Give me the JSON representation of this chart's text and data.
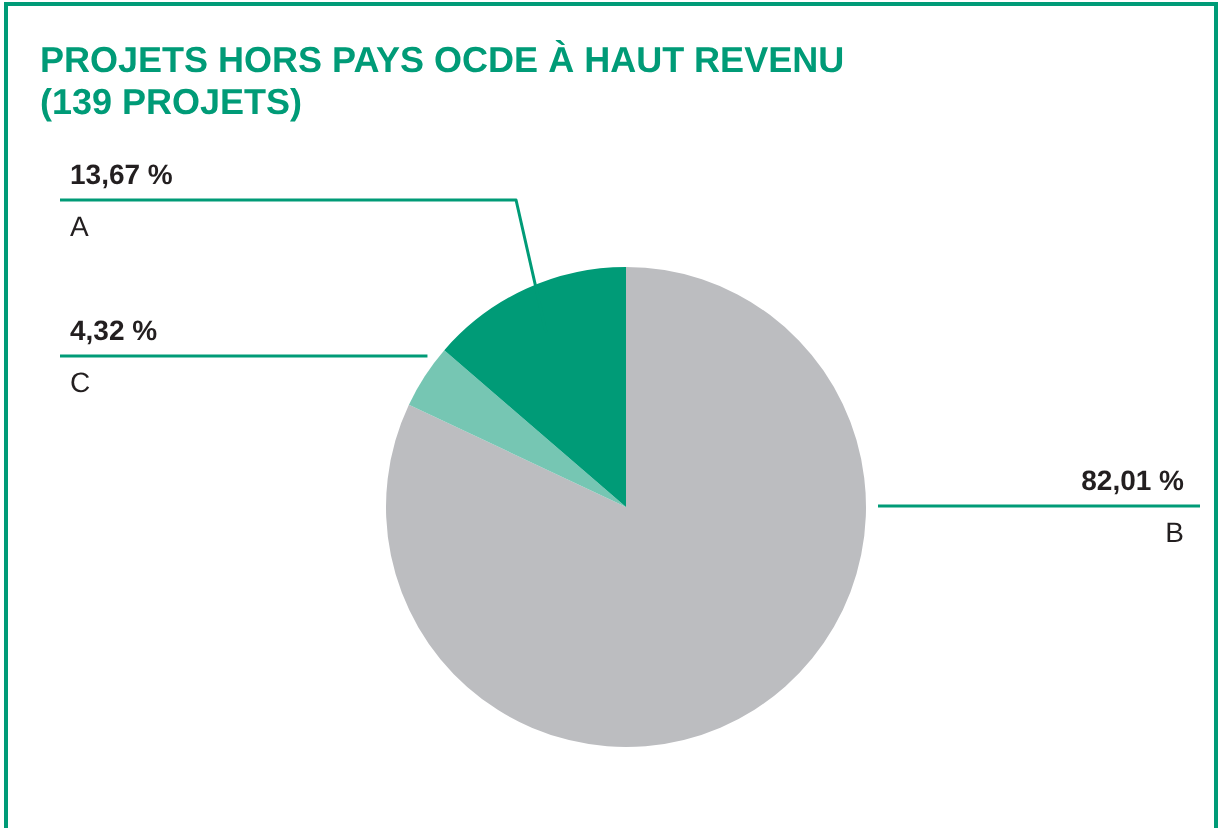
{
  "chart_data": {
    "type": "pie",
    "title": "PROJETS HORS PAYS OCDE À HAUT REVENU\n(139 PROJETS)",
    "categories": [
      "B",
      "C",
      "A"
    ],
    "values": [
      82.01,
      4.32,
      13.67
    ],
    "value_labels": [
      "82,01 %",
      "4,32 %",
      "13,67 %"
    ],
    "colors": [
      "#bcbdc0",
      "#76c6b3",
      "#009b77"
    ],
    "legend": false
  }
}
